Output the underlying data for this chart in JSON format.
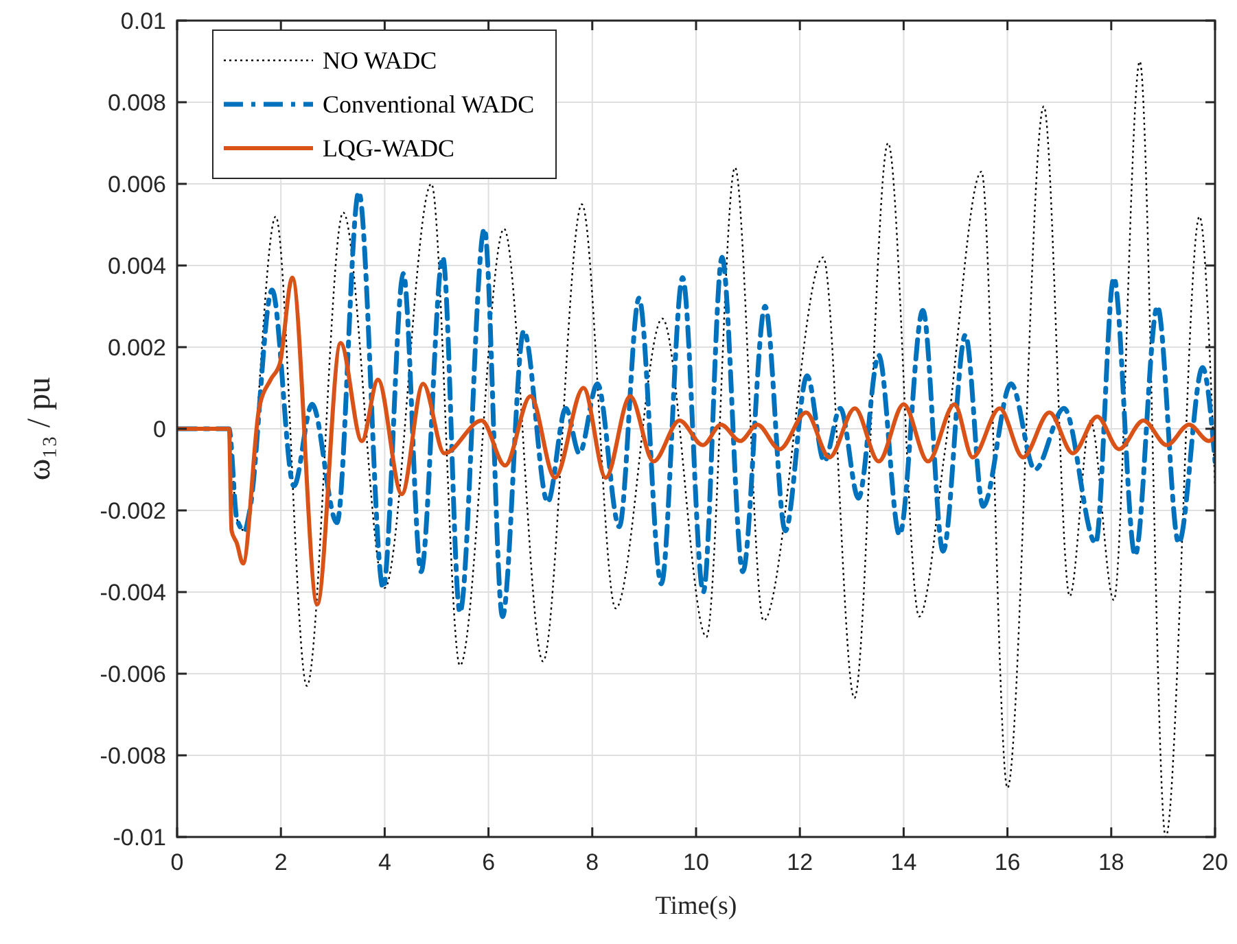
{
  "chart_data": {
    "type": "line",
    "xlabel": "Time(s)",
    "ylabel": "ω₁₃ / pu",
    "xlim": [
      0,
      20
    ],
    "ylim": [
      -0.01,
      0.01
    ],
    "xticks": [
      0,
      2,
      4,
      6,
      8,
      10,
      12,
      14,
      16,
      18,
      20
    ],
    "yticks": [
      -0.01,
      -0.008,
      -0.006,
      -0.004,
      -0.002,
      0,
      0.002,
      0.004,
      0.006,
      0.008,
      0.01
    ],
    "grid": true,
    "legend": "top left",
    "series": [
      {
        "name": "NO WADC",
        "color": "#000000",
        "line_style": "dotted",
        "x": [
          0,
          1.0,
          1.15,
          1.3,
          1.9,
          2.5,
          3.2,
          4.0,
          4.9,
          5.45,
          6.3,
          7.05,
          7.8,
          8.45,
          9.35,
          10.2,
          10.75,
          11.3,
          12.45,
          13.05,
          13.7,
          14.3,
          14.8,
          15.5,
          16.0,
          16.7,
          17.2,
          17.6,
          18.05,
          18.55,
          19.05,
          19.7,
          20
        ],
        "values": [
          0,
          0,
          -0.0022,
          -0.0025,
          0.0052,
          -0.0063,
          0.0053,
          -0.0039,
          0.006,
          -0.0058,
          0.0049,
          -0.0057,
          0.0055,
          -0.0044,
          0.0027,
          -0.0051,
          0.0064,
          -0.0047,
          0.0042,
          -0.0066,
          0.007,
          -0.0046,
          -0.0005,
          0.0063,
          -0.0088,
          0.0079,
          -0.0041,
          0.0002,
          -0.0042,
          0.009,
          -0.01,
          0.0052,
          -0.0014
        ]
      },
      {
        "name": "Conventional WADC",
        "color": "#0072bd",
        "line_style": "dashed",
        "x": [
          0,
          1.0,
          1.15,
          1.3,
          1.4,
          1.83,
          2.25,
          2.6,
          3.08,
          3.5,
          3.97,
          4.36,
          4.7,
          5.12,
          5.45,
          5.92,
          6.27,
          6.68,
          7.14,
          7.49,
          7.75,
          8.1,
          8.52,
          8.9,
          9.33,
          9.74,
          10.14,
          10.5,
          10.9,
          11.33,
          11.72,
          12.14,
          12.47,
          12.78,
          13.13,
          13.52,
          13.92,
          14.37,
          14.76,
          15.19,
          15.53,
          16.07,
          16.53,
          17.09,
          17.7,
          18.05,
          18.46,
          18.89,
          19.3,
          19.76,
          20
        ],
        "values": [
          0,
          0,
          -0.0022,
          -0.0025,
          -0.002,
          0.0034,
          -0.0014,
          0.0006,
          -0.0023,
          0.0058,
          -0.0039,
          0.0038,
          -0.0035,
          0.0042,
          -0.0045,
          0.0049,
          -0.0046,
          0.0024,
          -0.0018,
          0.0005,
          -0.0006,
          0.0011,
          -0.0024,
          0.0032,
          -0.0038,
          0.0037,
          -0.004,
          0.0042,
          -0.0035,
          0.003,
          -0.0025,
          0.0013,
          -0.0008,
          0.0005,
          -0.0017,
          0.0018,
          -0.0026,
          0.0029,
          -0.003,
          0.0023,
          -0.0019,
          0.0011,
          -0.001,
          0.0005,
          -0.0028,
          0.0037,
          -0.0031,
          0.003,
          -0.0028,
          0.0015,
          -0.0008
        ]
      },
      {
        "name": "LQG-WADC",
        "color": "#d95319",
        "line_style": "solid",
        "x": [
          0,
          1.0,
          1.05,
          1.15,
          1.27,
          1.58,
          1.8,
          1.98,
          2.22,
          2.7,
          3.15,
          3.56,
          3.87,
          4.33,
          4.74,
          5.15,
          5.87,
          6.32,
          6.81,
          7.28,
          7.83,
          8.26,
          8.73,
          9.18,
          9.68,
          10.13,
          10.48,
          10.85,
          11.18,
          11.61,
          12.12,
          12.57,
          13.06,
          13.52,
          14.0,
          14.47,
          14.98,
          15.33,
          15.85,
          16.3,
          16.81,
          17.26,
          17.73,
          18.15,
          18.62,
          19.07,
          19.5,
          19.88,
          20
        ],
        "values": [
          0,
          0,
          -0.0025,
          -0.0028,
          -0.0033,
          0.0005,
          0.0012,
          0.0016,
          0.0037,
          -0.0043,
          0.0021,
          -0.0003,
          0.0012,
          -0.0016,
          0.0011,
          -0.0006,
          0.0002,
          -0.0009,
          0.0008,
          -0.0012,
          0.001,
          -0.0012,
          0.0008,
          -0.0008,
          0.0002,
          -0.0004,
          0.0001,
          -0.0003,
          0.0001,
          -0.0005,
          0.0004,
          -0.0007,
          0.0005,
          -0.0008,
          0.0006,
          -0.0008,
          0.0006,
          -0.0007,
          0.0005,
          -0.0007,
          0.0004,
          -0.0006,
          0.0003,
          -0.0005,
          0.0002,
          -0.0004,
          0.0001,
          -0.0003,
          -0.0002
        ]
      }
    ]
  }
}
